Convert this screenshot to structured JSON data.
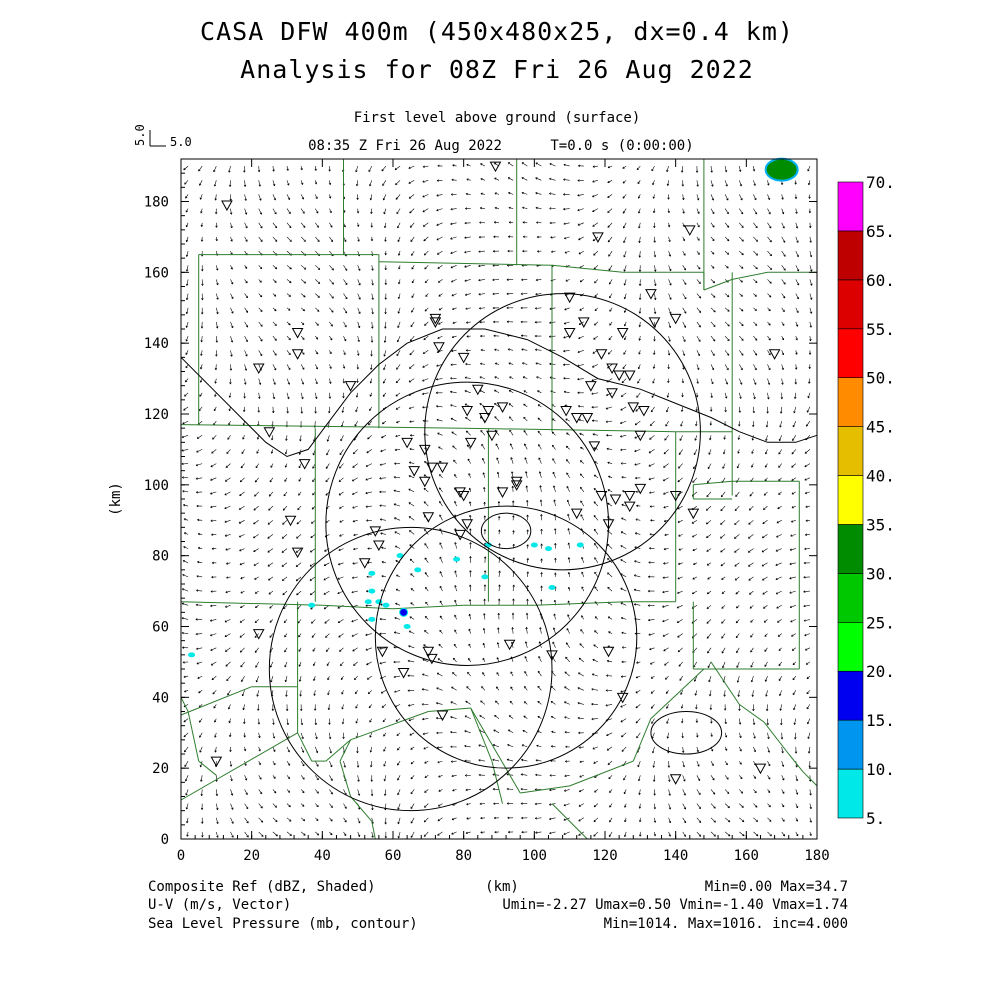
{
  "header": {
    "title_line1": "CASA DFW 400m (450x480x25, dx=0.4 km)",
    "title_line2": "Analysis for 08Z Fri 26 Aug 2022",
    "level": "First level above ground (surface)",
    "valid_time": "08:35 Z Fri 26 Aug 2022",
    "forecast_time": "T=0.0 s (0:00:00)",
    "vector_ref_label": "5.0",
    "vector_ref_rotated": "5.0"
  },
  "footer": {
    "ref_label": "Composite Ref (dBZ, Shaded)",
    "ref_stats": "Min=0.00 Max=34.7",
    "wind_label": "U-V (m/s, Vector)",
    "wind_stats": "Umin=-2.27 Umax=0.50 Vmin=-1.40 Vmax=1.74",
    "pressure_label": "Sea Level Pressure (mb, contour)",
    "pressure_stats": "Min=1014. Max=1016. inc=4.000",
    "x_unit": "(km)"
  },
  "chart_data": {
    "type": "heatmap",
    "xlabel": "(km)",
    "ylabel": "(km)",
    "xlim": [
      0,
      180
    ],
    "ylim": [
      0,
      192
    ],
    "x_ticks": [
      0,
      20,
      40,
      60,
      80,
      100,
      120,
      140,
      160,
      180
    ],
    "y_ticks": [
      0,
      20,
      40,
      60,
      80,
      100,
      120,
      140,
      160,
      180
    ],
    "colorbar": {
      "labels": [
        "5.",
        "10.",
        "15.",
        "20.",
        "25.",
        "30.",
        "35.",
        "40.",
        "45.",
        "50.",
        "55.",
        "60.",
        "65.",
        "70."
      ],
      "colors": [
        "#00e8e8",
        "#0096f0",
        "#0000f0",
        "#00ff00",
        "#00c800",
        "#008c00",
        "#ffff00",
        "#e6be00",
        "#ff8c00",
        "#ff0000",
        "#dc0000",
        "#be0000",
        "#ff00ff"
      ]
    },
    "radar_rings": [
      {
        "center": [
          65,
          48
        ],
        "radius": 40
      },
      {
        "center": [
          92,
          57
        ],
        "radius": 37
      },
      {
        "center": [
          81,
          89
        ],
        "radius": 40
      },
      {
        "center": [
          108,
          115
        ],
        "radius": 39
      }
    ],
    "pressure_contours": [
      {
        "points": [
          [
            0,
            136
          ],
          [
            8,
            128
          ],
          [
            16,
            120
          ],
          [
            24,
            112
          ],
          [
            30,
            108
          ],
          [
            36,
            110
          ],
          [
            42,
            118
          ],
          [
            48,
            126
          ],
          [
            56,
            134
          ],
          [
            64,
            140
          ],
          [
            74,
            144
          ],
          [
            86,
            144
          ],
          [
            98,
            141
          ],
          [
            108,
            136
          ],
          [
            118,
            130
          ],
          [
            130,
            127
          ],
          [
            140,
            123
          ],
          [
            150,
            119
          ],
          [
            158,
            115
          ],
          [
            166,
            112
          ],
          [
            174,
            112
          ],
          [
            180,
            114
          ]
        ]
      },
      {
        "center": [
          92,
          87
        ],
        "rx": 7,
        "ry": 5
      },
      {
        "center": [
          143,
          30
        ],
        "rx": 10,
        "ry": 6
      }
    ],
    "reflectivity_cells": [
      {
        "x": 170,
        "y": 189,
        "dbz": 30
      },
      {
        "x": 3,
        "y": 52,
        "dbz": 5
      },
      {
        "x": 54,
        "y": 75,
        "dbz": 5
      },
      {
        "x": 54,
        "y": 70,
        "dbz": 5
      },
      {
        "x": 53,
        "y": 67,
        "dbz": 5
      },
      {
        "x": 56,
        "y": 67,
        "dbz": 5
      },
      {
        "x": 54,
        "y": 62,
        "dbz": 5
      },
      {
        "x": 58,
        "y": 66,
        "dbz": 5
      },
      {
        "x": 63,
        "y": 64,
        "dbz": 15
      },
      {
        "x": 64,
        "y": 60,
        "dbz": 5
      },
      {
        "x": 62,
        "y": 80,
        "dbz": 5
      },
      {
        "x": 67,
        "y": 76,
        "dbz": 5
      },
      {
        "x": 78,
        "y": 79,
        "dbz": 5
      },
      {
        "x": 87,
        "y": 83,
        "dbz": 5
      },
      {
        "x": 86,
        "y": 74,
        "dbz": 5
      },
      {
        "x": 100,
        "y": 83,
        "dbz": 5
      },
      {
        "x": 104,
        "y": 82,
        "dbz": 5
      },
      {
        "x": 113,
        "y": 83,
        "dbz": 5
      },
      {
        "x": 105,
        "y": 71,
        "dbz": 5
      },
      {
        "x": 37,
        "y": 66,
        "dbz": 5
      }
    ],
    "stations": [
      [
        13,
        179
      ],
      [
        118,
        170
      ],
      [
        144,
        172
      ],
      [
        33,
        143
      ],
      [
        22,
        133
      ],
      [
        33,
        137
      ],
      [
        48,
        128
      ],
      [
        72,
        147
      ],
      [
        72,
        146
      ],
      [
        73,
        139
      ],
      [
        80,
        136
      ],
      [
        110,
        143
      ],
      [
        114,
        146
      ],
      [
        119,
        137
      ],
      [
        122,
        133
      ],
      [
        125,
        143
      ],
      [
        110,
        153
      ],
      [
        133,
        154
      ],
      [
        134,
        146
      ],
      [
        140,
        147
      ],
      [
        168,
        137
      ],
      [
        109,
        121
      ],
      [
        112,
        119
      ],
      [
        115,
        119
      ],
      [
        116,
        128
      ],
      [
        122,
        126
      ],
      [
        124,
        131
      ],
      [
        127,
        131
      ],
      [
        128,
        122
      ],
      [
        131,
        121
      ],
      [
        117,
        111
      ],
      [
        130,
        114
      ],
      [
        25,
        115
      ],
      [
        35,
        106
      ],
      [
        64,
        112
      ],
      [
        66,
        104
      ],
      [
        69,
        110
      ],
      [
        69,
        101
      ],
      [
        71,
        105
      ],
      [
        74,
        105
      ],
      [
        79,
        98
      ],
      [
        80,
        97
      ],
      [
        81,
        121
      ],
      [
        82,
        112
      ],
      [
        84,
        127
      ],
      [
        86,
        119
      ],
      [
        87,
        121
      ],
      [
        88,
        114
      ],
      [
        91,
        122
      ],
      [
        119,
        97
      ],
      [
        123,
        96
      ],
      [
        127,
        97
      ],
      [
        130,
        99
      ],
      [
        127,
        94
      ],
      [
        140,
        97
      ],
      [
        145,
        92
      ],
      [
        31,
        90
      ],
      [
        33,
        81
      ],
      [
        52,
        78
      ],
      [
        55,
        87
      ],
      [
        56,
        83
      ],
      [
        70,
        91
      ],
      [
        79,
        86
      ],
      [
        81,
        89
      ],
      [
        91,
        98
      ],
      [
        95,
        100
      ],
      [
        95,
        101
      ],
      [
        112,
        92
      ],
      [
        121,
        89
      ],
      [
        22,
        58
      ],
      [
        57,
        53
      ],
      [
        63,
        47
      ],
      [
        70,
        53
      ],
      [
        71,
        51
      ],
      [
        74,
        35
      ],
      [
        93,
        55
      ],
      [
        105,
        52
      ],
      [
        121,
        53
      ],
      [
        125,
        40
      ],
      [
        10,
        22
      ],
      [
        140,
        17
      ],
      [
        164,
        20
      ],
      [
        89,
        190
      ]
    ],
    "county_lines": [
      [
        [
          0,
          192
        ],
        [
          180,
          192
        ]
      ],
      [
        [
          46,
          192
        ],
        [
          46,
          165
        ]
      ],
      [
        [
          95,
          192
        ],
        [
          95,
          162
        ]
      ],
      [
        [
          148,
          192
        ],
        [
          148,
          155
        ]
      ],
      [
        [
          5,
          165
        ],
        [
          56,
          165
        ]
      ],
      [
        [
          56,
          165
        ],
        [
          56,
          163
        ]
      ],
      [
        [
          56,
          163
        ],
        [
          105,
          162
        ]
      ],
      [
        [
          105,
          162
        ],
        [
          125,
          160
        ]
      ],
      [
        [
          125,
          160
        ],
        [
          148,
          160
        ]
      ],
      [
        [
          148,
          160
        ],
        [
          148,
          155
        ]
      ],
      [
        [
          148,
          155
        ],
        [
          156,
          158
        ]
      ],
      [
        [
          156,
          158
        ],
        [
          166,
          160
        ]
      ],
      [
        [
          166,
          160
        ],
        [
          180,
          160
        ]
      ],
      [
        [
          5,
          165
        ],
        [
          5,
          117
        ]
      ],
      [
        [
          0,
          117
        ],
        [
          80,
          116
        ]
      ],
      [
        [
          80,
          116
        ],
        [
          140,
          115
        ]
      ],
      [
        [
          140,
          115
        ],
        [
          156,
          115
        ]
      ],
      [
        [
          56,
          163
        ],
        [
          56,
          116
        ]
      ],
      [
        [
          105,
          162
        ],
        [
          105,
          115
        ]
      ],
      [
        [
          156,
          160
        ],
        [
          156,
          115
        ]
      ],
      [
        [
          38,
          116
        ],
        [
          38,
          67
        ]
      ],
      [
        [
          87,
          116
        ],
        [
          87,
          67
        ]
      ],
      [
        [
          140,
          115
        ],
        [
          140,
          67
        ]
      ],
      [
        [
          0,
          67
        ],
        [
          40,
          66
        ]
      ],
      [
        [
          40,
          66
        ],
        [
          60,
          65
        ]
      ],
      [
        [
          60,
          65
        ],
        [
          80,
          66
        ]
      ],
      [
        [
          80,
          66
        ],
        [
          100,
          66
        ]
      ],
      [
        [
          100,
          66
        ],
        [
          126,
          67
        ]
      ],
      [
        [
          126,
          67
        ],
        [
          140,
          67
        ]
      ],
      [
        [
          156,
          115
        ],
        [
          156,
          97
        ]
      ],
      [
        [
          145,
          96
        ],
        [
          156,
          96
        ]
      ],
      [
        [
          145,
          100
        ],
        [
          145,
          96
        ]
      ],
      [
        [
          145,
          100
        ],
        [
          156,
          101
        ]
      ],
      [
        [
          156,
          101
        ],
        [
          175,
          101
        ]
      ],
      [
        [
          175,
          101
        ],
        [
          175,
          48
        ]
      ],
      [
        [
          145,
          48
        ],
        [
          175,
          48
        ]
      ],
      [
        [
          145,
          67
        ],
        [
          145,
          48
        ]
      ],
      [
        [
          0,
          35
        ],
        [
          20,
          43
        ]
      ],
      [
        [
          20,
          43
        ],
        [
          33,
          43
        ]
      ],
      [
        [
          33,
          43
        ],
        [
          33,
          67
        ]
      ],
      [
        [
          33,
          43
        ],
        [
          33,
          30
        ]
      ],
      [
        [
          0,
          11
        ],
        [
          33,
          30
        ]
      ],
      [
        [
          33,
          30
        ],
        [
          37,
          22
        ]
      ],
      [
        [
          37,
          22
        ],
        [
          41,
          22
        ]
      ],
      [
        [
          41,
          22
        ],
        [
          48,
          28
        ]
      ],
      [
        [
          48,
          28
        ],
        [
          70,
          36
        ]
      ],
      [
        [
          70,
          36
        ],
        [
          82,
          37
        ]
      ],
      [
        [
          82,
          37
        ],
        [
          96,
          13
        ]
      ],
      [
        [
          96,
          13
        ],
        [
          110,
          15
        ]
      ],
      [
        [
          110,
          15
        ],
        [
          128,
          22
        ]
      ],
      [
        [
          128,
          22
        ],
        [
          133,
          34
        ]
      ],
      [
        [
          133,
          34
        ],
        [
          148,
          48
        ]
      ],
      [
        [
          48,
          28
        ],
        [
          45,
          22
        ]
      ],
      [
        [
          45,
          22
        ],
        [
          48,
          12
        ]
      ],
      [
        [
          48,
          12
        ],
        [
          54,
          5
        ]
      ],
      [
        [
          54,
          5
        ],
        [
          55,
          0
        ]
      ],
      [
        [
          82,
          37
        ],
        [
          88,
          22
        ]
      ],
      [
        [
          88,
          22
        ],
        [
          91,
          10
        ]
      ],
      [
        [
          105,
          10
        ],
        [
          115,
          0
        ]
      ],
      [
        [
          0,
          40
        ],
        [
          2,
          36
        ]
      ],
      [
        [
          2,
          36
        ],
        [
          5,
          22
        ]
      ],
      [
        [
          5,
          22
        ],
        [
          10,
          18
        ]
      ],
      [
        [
          150,
          50
        ],
        [
          158,
          38
        ]
      ],
      [
        [
          158,
          38
        ],
        [
          165,
          33
        ]
      ],
      [
        [
          165,
          33
        ],
        [
          172,
          24
        ]
      ],
      [
        [
          172,
          24
        ],
        [
          176,
          19
        ]
      ],
      [
        [
          176,
          19
        ],
        [
          180,
          15
        ]
      ]
    ]
  }
}
